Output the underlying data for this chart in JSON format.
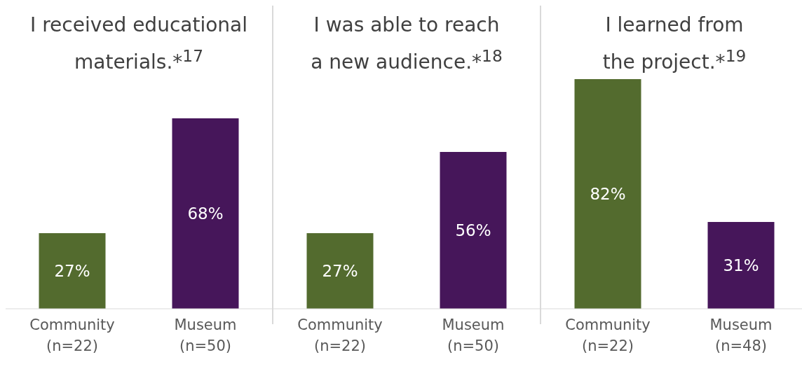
{
  "chart_data": [
    {
      "type": "bar",
      "title": "I received educational\nmaterials.*$^{17}$",
      "categories": [
        "Community\n(n=22)",
        "Museum\n(n=50)"
      ],
      "values": [
        27,
        68
      ],
      "value_labels": [
        "27%",
        "68%"
      ],
      "colors": [
        "#536b2e",
        "#46165a"
      ]
    },
    {
      "type": "bar",
      "title": "I was able to reach\na new audience.*$^{18}$",
      "categories": [
        "Community\n(n=22)",
        "Museum\n(n=50)"
      ],
      "values": [
        27,
        56
      ],
      "value_labels": [
        "27%",
        "56%"
      ],
      "colors": [
        "#536b2e",
        "#46165a"
      ]
    },
    {
      "type": "bar",
      "title": "I learned from\nthe project.*$^{19}$",
      "categories": [
        "Community\n(n=22)",
        "Museum\n(n=48)"
      ],
      "values": [
        82,
        31
      ],
      "value_labels": [
        "82%",
        "31%"
      ],
      "colors": [
        "#536b2e",
        "#46165a"
      ]
    }
  ]
}
